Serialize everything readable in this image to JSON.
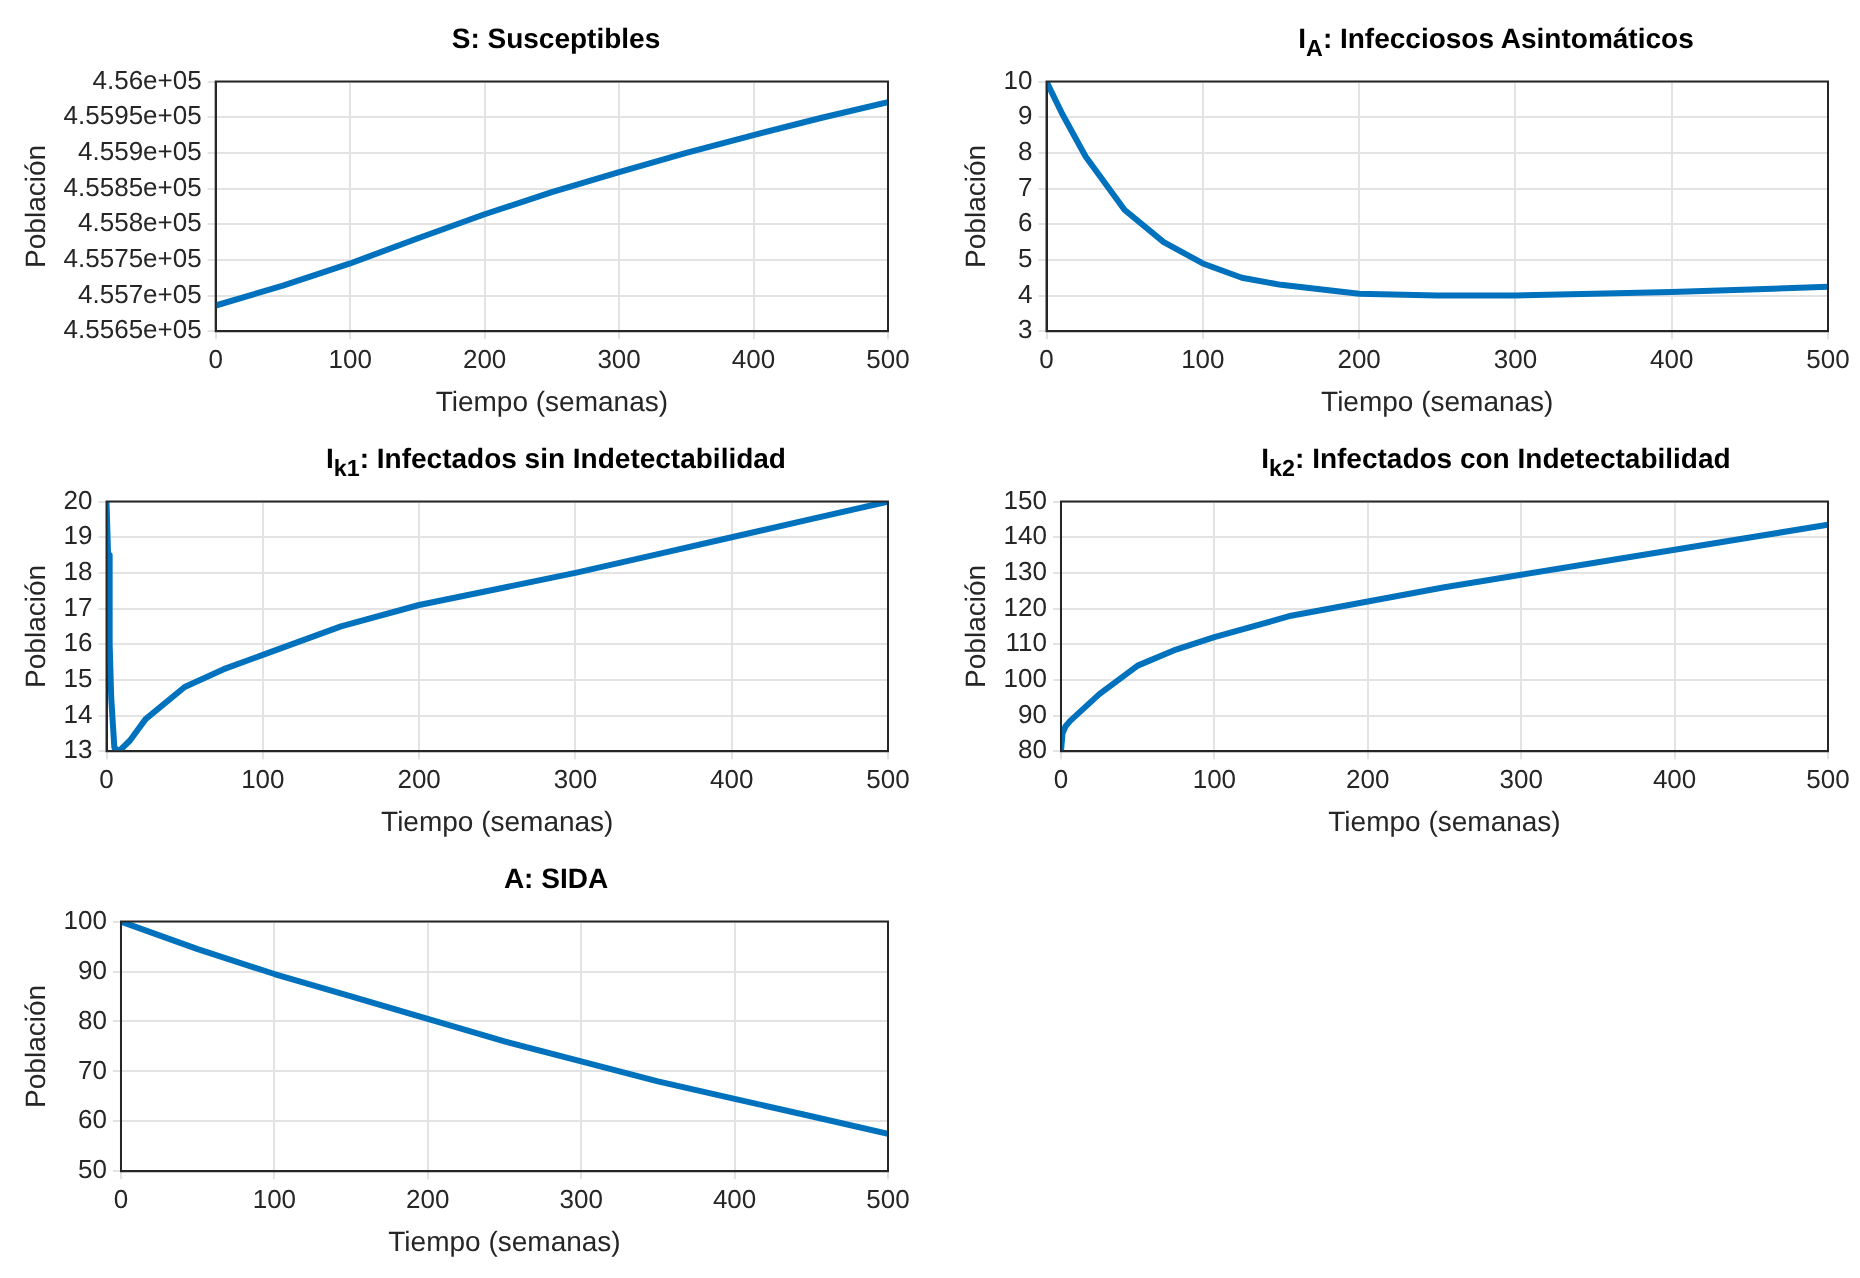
{
  "chart_data": [
    {
      "type": "line",
      "title": "S: Susceptibles",
      "xlabel": "Tiempo (semanas)",
      "ylabel": "Población",
      "grid": true,
      "xlim": [
        0,
        500
      ],
      "xticks": [
        0,
        100,
        200,
        300,
        400,
        500
      ],
      "ylim": [
        455650,
        456000
      ],
      "yticks": [
        {
          "value": 455650,
          "label": "4.5565e+05"
        },
        {
          "value": 455700,
          "label": "4.557e+05"
        },
        {
          "value": 455750,
          "label": "4.5575e+05"
        },
        {
          "value": 455800,
          "label": "4.558e+05"
        },
        {
          "value": 455850,
          "label": "4.5585e+05"
        },
        {
          "value": 455900,
          "label": "4.559e+05"
        },
        {
          "value": 455950,
          "label": "4.5595e+05"
        },
        {
          "value": 456000,
          "label": "4.56e+05"
        }
      ],
      "series": [
        {
          "color": "#0072bd",
          "x": [
            0,
            50,
            100,
            150,
            200,
            250,
            300,
            350,
            400,
            450,
            500
          ],
          "values": [
            455686,
            455714,
            455745,
            455780,
            455814,
            455845,
            455873,
            455900,
            455925,
            455949,
            455971
          ]
        }
      ]
    },
    {
      "type": "line",
      "title": "I$_{A}$: Infecciosos Asintomáticos",
      "xlabel": "Tiempo (semanas)",
      "ylabel": "Población",
      "grid": true,
      "xlim": [
        0,
        500
      ],
      "xticks": [
        0,
        100,
        200,
        300,
        400,
        500
      ],
      "ylim": [
        3,
        10
      ],
      "yticks": [
        3,
        4,
        5,
        6,
        7,
        8,
        9,
        10
      ],
      "series": [
        {
          "color": "#0072bd",
          "x": [
            0,
            10,
            25,
            50,
            75,
            100,
            125,
            150,
            200,
            250,
            300,
            350,
            400,
            450,
            500
          ],
          "values": [
            10,
            9.1,
            7.9,
            6.4,
            5.5,
            4.9,
            4.5,
            4.3,
            4.05,
            4.0,
            4.0,
            4.05,
            4.1,
            4.17,
            4.25
          ]
        }
      ]
    },
    {
      "type": "line",
      "title": "I$_{k1}$: Infectados sin Indetectabilidad",
      "xlabel": "Tiempo (semanas)",
      "ylabel": "Población",
      "grid": true,
      "xlim": [
        0,
        500
      ],
      "xticks": [
        0,
        100,
        200,
        300,
        400,
        500
      ],
      "ylim": [
        13,
        20
      ],
      "yticks": [
        13,
        14,
        15,
        16,
        17,
        18,
        19,
        20
      ],
      "series": [
        {
          "color": "#0072bd",
          "x": [
            0,
            1,
            2,
            3,
            5,
            8,
            15,
            25,
            50,
            75,
            100,
            150,
            200,
            250,
            300,
            350,
            400,
            450,
            500
          ],
          "values": [
            20,
            18.5,
            16,
            14.5,
            13.1,
            13,
            13.3,
            13.9,
            14.8,
            15.3,
            15.7,
            16.5,
            17.1,
            17.55,
            18.0,
            18.5,
            19.0,
            19.5,
            20.0
          ]
        }
      ]
    },
    {
      "type": "line",
      "title": "I$_{k2}$: Infectados con Indetectabilidad",
      "xlabel": "Tiempo (semanas)",
      "ylabel": "Población",
      "grid": true,
      "xlim": [
        0,
        500
      ],
      "xticks": [
        0,
        100,
        200,
        300,
        400,
        500
      ],
      "ylim": [
        80,
        150
      ],
      "yticks": [
        80,
        90,
        100,
        110,
        120,
        130,
        140,
        150
      ],
      "series": [
        {
          "color": "#0072bd",
          "x": [
            0,
            1,
            3,
            6,
            25,
            50,
            75,
            100,
            150,
            200,
            250,
            300,
            350,
            400,
            450,
            500
          ],
          "values": [
            80,
            85,
            87,
            88.5,
            96,
            104,
            108.5,
            112,
            118,
            122,
            126,
            129.5,
            133,
            136.5,
            140,
            143.5
          ]
        }
      ]
    },
    {
      "type": "line",
      "title": "A: SIDA",
      "xlabel": "Tiempo (semanas)",
      "ylabel": "Población",
      "grid": true,
      "xlim": [
        0,
        500
      ],
      "xticks": [
        0,
        100,
        200,
        300,
        400,
        500
      ],
      "ylim": [
        50,
        100
      ],
      "yticks": [
        50,
        60,
        70,
        80,
        90,
        100
      ],
      "series": [
        {
          "color": "#0072bd",
          "x": [
            0,
            50,
            100,
            150,
            200,
            250,
            300,
            350,
            400,
            450,
            500
          ],
          "values": [
            100,
            94.5,
            89.5,
            85,
            80.5,
            76,
            72,
            68,
            64.5,
            61,
            57.5
          ]
        }
      ]
    }
  ]
}
